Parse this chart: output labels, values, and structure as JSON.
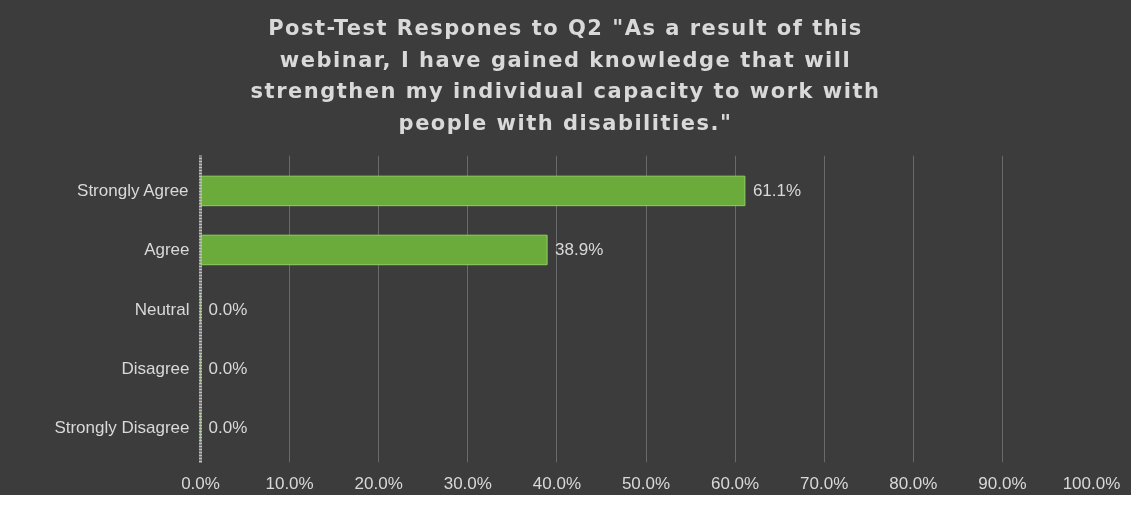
{
  "chart_data": {
    "type": "bar",
    "orientation": "horizontal",
    "title": "Post-Test Respones to Q2 \"As a result of this webinar, I have gained knowledge that will strengthen my individual capacity to work with people with disabilities.\"",
    "categories": [
      "Strongly Agree",
      "Agree",
      "Neutral",
      "Disagree",
      "Strongly Disagree"
    ],
    "series": [
      {
        "color": "#6aab3c",
        "values": [
          61.1,
          38.9,
          0,
          0,
          0
        ],
        "value_labels": [
          "61.1%",
          "38.9%",
          "0.0%",
          "0.0%",
          "0.0%"
        ]
      }
    ],
    "xlim": [
      0,
      100
    ],
    "xticks": [
      {
        "value": 0,
        "label": "0.0%"
      },
      {
        "value": 10,
        "label": "10.0%"
      },
      {
        "value": 20,
        "label": "20.0%"
      },
      {
        "value": 30,
        "label": "30.0%"
      },
      {
        "value": 40,
        "label": "40.0%"
      },
      {
        "value": 50,
        "label": "50.0%"
      },
      {
        "value": 60,
        "label": "60.0%"
      },
      {
        "value": 70,
        "label": "70.0%"
      },
      {
        "value": 80,
        "label": "80.0%"
      },
      {
        "value": 90,
        "label": "90.0%"
      },
      {
        "value": 100,
        "label": "100.0%"
      }
    ],
    "grid": "x"
  }
}
